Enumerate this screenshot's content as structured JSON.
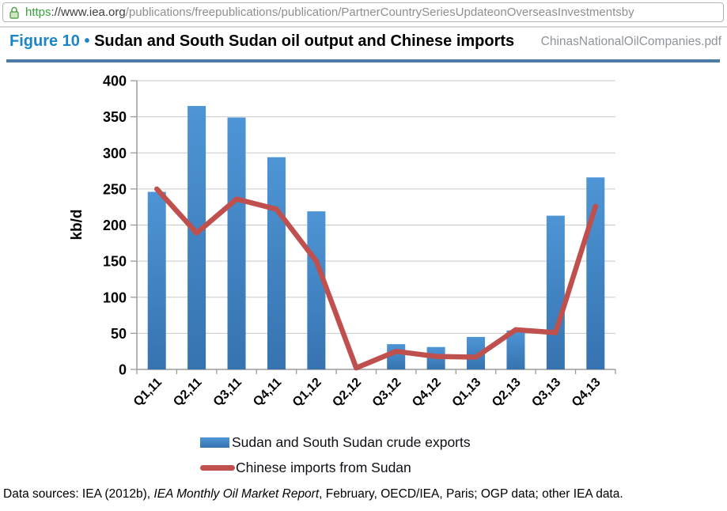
{
  "browser": {
    "url_scheme": "https",
    "url_host": "://www.iea.org",
    "url_path": "/publications/freepublications/publication/PartnerCountrySeriesUpdateonOverseasInvestmentsby",
    "url_overflow": "ChinasNationalOilCompanies.pdf"
  },
  "figure": {
    "label": "Figure 10",
    "bullet": "•",
    "title": "Sudan and South Sudan oil output and Chinese imports"
  },
  "chart_data": {
    "type": "bar",
    "categories": [
      "Q1,11",
      "Q2,11",
      "Q3,11",
      "Q4,11",
      "Q1,12",
      "Q2,12",
      "Q3,12",
      "Q4,12",
      "Q1,13",
      "Q2,13",
      "Q3,13",
      "Q4,13"
    ],
    "series": [
      {
        "name": "Sudan and South Sudan crude exports",
        "type": "bar",
        "color": "#3d85c6",
        "values": [
          246,
          365,
          349,
          294,
          219,
          0,
          35,
          31,
          45,
          54,
          213,
          266
        ]
      },
      {
        "name": "Chinese imports from Sudan",
        "type": "line",
        "color": "#c0504d",
        "values": [
          250,
          189,
          236,
          222,
          150,
          2,
          25,
          18,
          17,
          55,
          51,
          226
        ]
      }
    ],
    "title": "Sudan and South Sudan oil output and Chinese imports",
    "xlabel": "",
    "ylabel": "kb/d",
    "ylim": [
      0,
      400
    ],
    "ytick_step": 50,
    "grid": true,
    "legend_position": "bottom"
  },
  "footer": {
    "prefix": "Data sources: IEA (2012b), ",
    "italic": "IEA Monthly Oil Market Report",
    "suffix": ", February, OECD/IEA, Paris; OGP data; other IEA data."
  },
  "colors": {
    "bar_top": "#4e95d5",
    "bar_bottom": "#3673b0",
    "line": "#c0504d",
    "title_accent": "#1b86c7",
    "divider": "#4d7ca7",
    "axis": "#9b9b9b",
    "grid": "#c9c9c9",
    "url_green": "#38a33c"
  }
}
